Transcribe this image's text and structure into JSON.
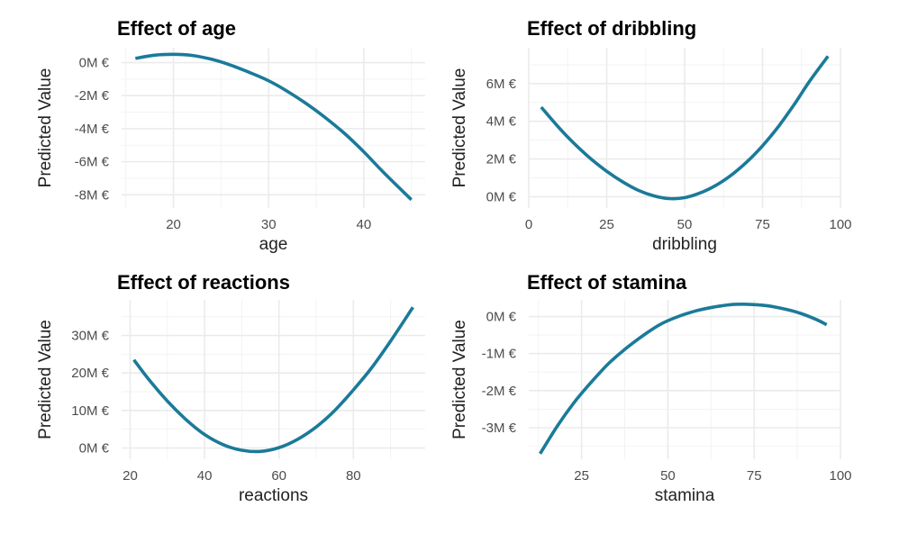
{
  "chart_data": [
    {
      "type": "line",
      "title": "Effect of age",
      "xlabel": "age",
      "ylabel": "Predicted Value",
      "xlim": [
        14.55,
        46.45
      ],
      "ylim": [
        -8.8,
        0.9
      ],
      "x_ticks": [
        20,
        30,
        40
      ],
      "x_tick_labels": [
        "20",
        "30",
        "40"
      ],
      "y_ticks": [
        -8,
        -6,
        -4,
        -2,
        0
      ],
      "y_tick_labels": [
        "-8M €",
        "-6M €",
        "-4M €",
        "-2M €",
        "0M €"
      ],
      "grid": true,
      "line_color": "#1b7a99",
      "series": [
        {
          "x": [
            16,
            18,
            20,
            22,
            24,
            26,
            28,
            30,
            32,
            34,
            36,
            38,
            40,
            42,
            45
          ],
          "y": [
            0.25,
            0.45,
            0.5,
            0.43,
            0.2,
            -0.15,
            -0.6,
            -1.1,
            -1.75,
            -2.5,
            -3.35,
            -4.3,
            -5.4,
            -6.6,
            -8.3
          ]
        }
      ]
    },
    {
      "type": "line",
      "title": "Effect of dribbling",
      "xlabel": "dribbling",
      "ylabel": "Predicted Value",
      "xlim": [
        0,
        100
      ],
      "ylim": [
        -0.6,
        7.9
      ],
      "x_ticks": [
        0,
        25,
        50,
        75,
        100
      ],
      "x_tick_labels": [
        "0",
        "25",
        "50",
        "75",
        "100"
      ],
      "y_ticks": [
        0,
        2,
        4,
        6
      ],
      "y_tick_labels": [
        "0M €",
        "2M €",
        "4M €",
        "6M €"
      ],
      "grid": true,
      "line_color": "#1b7a99",
      "series": [
        {
          "x": [
            4,
            10,
            15,
            20,
            25,
            30,
            35,
            40,
            45,
            50,
            55,
            60,
            65,
            70,
            75,
            80,
            85,
            90,
            96
          ],
          "y": [
            4.75,
            3.6,
            2.75,
            2.0,
            1.35,
            0.8,
            0.35,
            0.05,
            -0.1,
            -0.05,
            0.2,
            0.6,
            1.15,
            1.85,
            2.7,
            3.7,
            4.85,
            6.1,
            7.45
          ]
        }
      ]
    },
    {
      "type": "line",
      "title": "Effect of reactions",
      "xlabel": "reactions",
      "ylabel": "Predicted Value",
      "xlim": [
        17.7,
        99.3
      ],
      "ylim": [
        -3,
        39.5
      ],
      "x_ticks": [
        20,
        40,
        60,
        80
      ],
      "x_tick_labels": [
        "20",
        "40",
        "60",
        "80"
      ],
      "y_ticks": [
        0,
        10,
        20,
        30
      ],
      "y_tick_labels": [
        "0M €",
        "10M €",
        "20M €",
        "30M €"
      ],
      "grid": true,
      "line_color": "#1b7a99",
      "series": [
        {
          "x": [
            21,
            25,
            30,
            35,
            40,
            45,
            50,
            55,
            60,
            65,
            70,
            75,
            80,
            85,
            90,
            96
          ],
          "y": [
            23.5,
            18.3,
            12.5,
            7.6,
            3.6,
            0.9,
            -0.6,
            -0.9,
            0.1,
            2.3,
            5.6,
            10.0,
            15.5,
            21.5,
            28.5,
            37.5
          ]
        }
      ]
    },
    {
      "type": "line",
      "title": "Effect of stamina",
      "xlabel": "stamina",
      "ylabel": "Predicted Value",
      "xlim": [
        9.7,
        100
      ],
      "ylim": [
        -3.85,
        0.45
      ],
      "x_ticks": [
        25,
        50,
        75,
        100
      ],
      "x_tick_labels": [
        "25",
        "50",
        "75",
        "100"
      ],
      "y_ticks": [
        -3,
        -2,
        -1,
        0
      ],
      "y_tick_labels": [
        "-3M €",
        "-2M €",
        "-1M €",
        "0M €"
      ],
      "grid": true,
      "line_color": "#1b7a99",
      "series": [
        {
          "x": [
            13,
            18,
            23,
            28,
            33,
            38,
            43,
            48,
            53,
            58,
            63,
            68,
            73,
            78,
            83,
            88,
            93,
            96
          ],
          "y": [
            -3.7,
            -2.95,
            -2.3,
            -1.75,
            -1.25,
            -0.85,
            -0.5,
            -0.2,
            0.0,
            0.15,
            0.25,
            0.32,
            0.33,
            0.3,
            0.22,
            0.1,
            -0.08,
            -0.22
          ]
        }
      ]
    }
  ]
}
